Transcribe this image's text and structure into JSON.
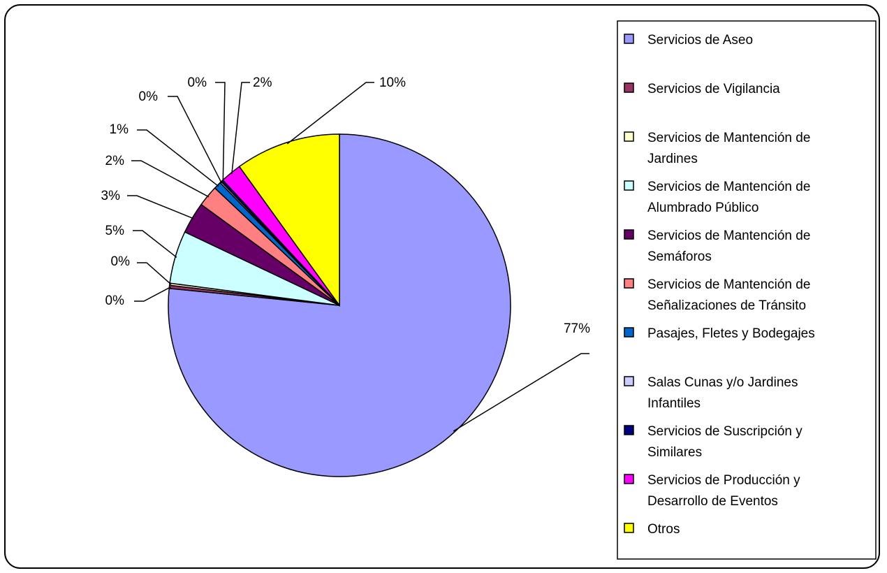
{
  "chart_data": {
    "type": "pie",
    "title": "",
    "legend_position": "right",
    "slices": [
      {
        "name": "Servicios de Aseo",
        "value": 77,
        "label": "77%",
        "color": "#9999ff"
      },
      {
        "name": "Servicios de Vigilancia",
        "value": 0.3,
        "label": "0%",
        "color": "#993366"
      },
      {
        "name": "Servicios de Mantención de Jardines",
        "value": 0.2,
        "label": "0%",
        "color": "#ffffcc"
      },
      {
        "name": "Servicios de Mantención de Alumbrado Público",
        "value": 5,
        "label": "5%",
        "color": "#ccffff"
      },
      {
        "name": "Servicios de Mantención de Semáforos",
        "value": 3,
        "label": "3%",
        "color": "#660066"
      },
      {
        "name": "Servicios de Mantención de Señalizaciones de Tránsito",
        "value": 2,
        "label": "2%",
        "color": "#ff8080"
      },
      {
        "name": "Pasajes, Fletes y Bodegajes",
        "value": 0.7,
        "label": "1%",
        "color": "#0066cc"
      },
      {
        "name": "Salas Cunas y/o Jardines Infantiles",
        "value": 0.15,
        "label": "0%",
        "color": "#ccccff"
      },
      {
        "name": "Servicios de Suscripción y Similares",
        "value": 0.2,
        "label": "0%",
        "color": "#000080"
      },
      {
        "name": "Servicios de Producción y Desarrollo de Eventos",
        "value": 2,
        "label": "2%",
        "color": "#ff00ff"
      },
      {
        "name": "Otros",
        "value": 10,
        "label": "10%",
        "color": "#ffff00"
      }
    ]
  },
  "legend": {
    "items": [
      {
        "lines": [
          "Servicios de Aseo"
        ],
        "color": "#9999ff"
      },
      {
        "lines": [
          "Servicios de Vigilancia"
        ],
        "color": "#993366"
      },
      {
        "lines": [
          "Servicios de Mantención de",
          "Jardines"
        ],
        "color": "#ffffcc"
      },
      {
        "lines": [
          "Servicios de Mantención de",
          "Alumbrado Público"
        ],
        "color": "#ccffff"
      },
      {
        "lines": [
          "Servicios de Mantención de",
          "Semáforos"
        ],
        "color": "#660066"
      },
      {
        "lines": [
          "Servicios de Mantención de",
          "Señalizaciones de Tránsito"
        ],
        "color": "#ff8080"
      },
      {
        "lines": [
          "Pasajes, Fletes y Bodegajes"
        ],
        "color": "#0066cc"
      },
      {
        "lines": [
          "Salas Cunas y/o Jardines",
          "Infantiles"
        ],
        "color": "#ccccff"
      },
      {
        "lines": [
          "Servicios de Suscripción y",
          "Similares"
        ],
        "color": "#000080"
      },
      {
        "lines": [
          "Servicios de Producción y",
          "Desarrollo de Eventos"
        ],
        "color": "#ff00ff"
      },
      {
        "lines": [
          "Otros"
        ],
        "color": "#ffff00"
      }
    ]
  }
}
